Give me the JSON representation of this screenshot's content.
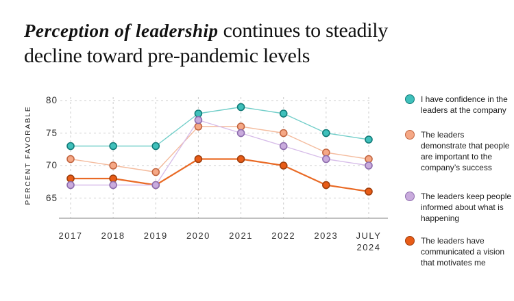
{
  "title": {
    "handwritten": "Perception of leadership",
    "serif_rest": " continues to steadily decline toward pre-pandemic levels"
  },
  "chart_data": {
    "type": "line",
    "title": "Perception of leadership continues to steadily decline toward pre-pandemic levels",
    "ylabel": "PERCENT FAVORABLE",
    "xlabel": "",
    "ylim": [
      62,
      81
    ],
    "yticks": [
      80,
      75,
      70,
      65
    ],
    "grid": true,
    "grid_style": "dashed",
    "legend_position": "right",
    "categories": [
      "2017",
      "2018",
      "2019",
      "2020",
      "2021",
      "2022",
      "2023",
      "JULY\n2024"
    ],
    "series": [
      {
        "name": "I have confidence in the leaders at the company",
        "values": [
          73,
          73,
          73,
          78,
          79,
          78,
          75,
          74
        ],
        "line_color": "#74cfca",
        "marker_fill": "#3fc0bb",
        "marker_stroke": "#117a77",
        "line_width": 1.4
      },
      {
        "name": "The leaders demonstrate that people are important to the company’s success",
        "values": [
          71,
          70,
          69,
          76,
          76,
          75,
          72,
          71
        ],
        "line_color": "#f4bb9d",
        "marker_fill": "#f5a886",
        "marker_stroke": "#c26540",
        "line_width": 1.4
      },
      {
        "name": "The leaders keep people informed about what is happening",
        "values": [
          67,
          67,
          67,
          77,
          75,
          73,
          71,
          70
        ],
        "line_color": "#d7bde9",
        "marker_fill": "#c9abdd",
        "marker_stroke": "#8d6cad",
        "line_width": 1.4
      },
      {
        "name": "The leaders have communicated a vision that motivates me",
        "values": [
          68,
          68,
          67,
          71,
          71,
          70,
          67,
          66
        ],
        "line_color": "#e96a25",
        "marker_fill": "#e85c17",
        "marker_stroke": "#9e3d0b",
        "line_width": 2.2
      }
    ],
    "draw_order": [
      0,
      1,
      3,
      2
    ],
    "colors": {
      "gridline": "#cccccc",
      "axis_line": "#9b9b9b",
      "text": "#2e2e2e"
    }
  }
}
